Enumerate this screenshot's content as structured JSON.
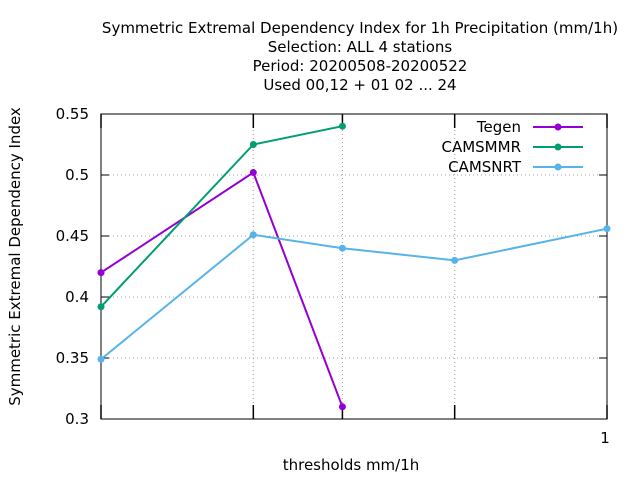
{
  "chart_data": {
    "type": "line",
    "title": [
      "Symmetric Extremal Dependency Index  for 1h Precipitation (mm/1h)",
      "Selection: ALL      4 stations",
      "Period: 20200508-20200522",
      "Used  00,12  + 01 02 ... 24"
    ],
    "xlabel": "thresholds mm/1h",
    "ylabel": "Symmetric Extremal Dependency Index",
    "xscale": "log",
    "xlim": [
      0.1,
      1
    ],
    "ylim": [
      0.3,
      0.55
    ],
    "yticks": [
      0.3,
      0.35,
      0.4,
      0.45,
      0.5,
      0.55
    ],
    "xticks": [
      0.1,
      0.2,
      0.3,
      0.5,
      1
    ],
    "xtick_labels": [
      "",
      "",
      "",
      "",
      "1"
    ],
    "grid": true,
    "legend_position": "top-right",
    "series": [
      {
        "name": "Tegen",
        "color": "#9400d3",
        "x": [
          0.1,
          0.2,
          0.3
        ],
        "y": [
          0.42,
          0.502,
          0.31
        ]
      },
      {
        "name": "CAMSMMR",
        "color": "#009e73",
        "x": [
          0.1,
          0.2,
          0.3
        ],
        "y": [
          0.392,
          0.525,
          0.54
        ]
      },
      {
        "name": "CAMSNRT",
        "color": "#56b4e9",
        "x": [
          0.1,
          0.2,
          0.3,
          0.5,
          1
        ],
        "y": [
          0.349,
          0.451,
          0.44,
          0.43,
          0.456
        ]
      }
    ]
  }
}
